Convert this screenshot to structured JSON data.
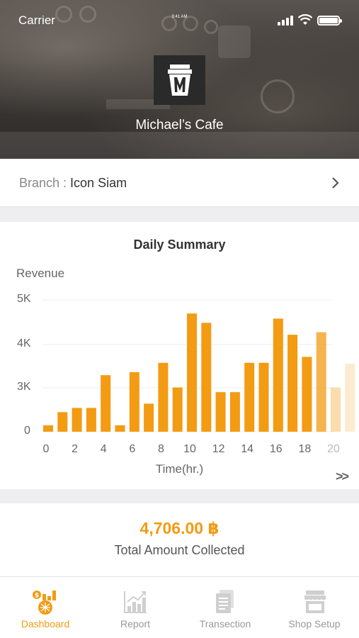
{
  "status_bar": {
    "carrier": "Carrier",
    "time": "9:41 AM"
  },
  "header": {
    "shop_name": "Michael’s Cafe",
    "logo_letter": "M"
  },
  "branch": {
    "label": "Branch : ",
    "value": "Icon Siam",
    "chevron_icon": "chevron-right-icon"
  },
  "chart": {
    "title": "Daily Summary",
    "ylabel": "Revenue",
    "xlabel": "Time(hr.)",
    "more_label": ">>"
  },
  "chart_data": {
    "type": "bar",
    "title": "Daily Summary",
    "xlabel": "Time(hr.)",
    "ylabel": "Revenue",
    "categories": [
      0,
      1,
      2,
      3,
      4,
      5,
      6,
      7,
      8,
      9,
      10,
      11,
      12,
      13,
      14,
      15,
      16,
      17,
      18,
      19,
      20,
      21
    ],
    "values": [
      150,
      460,
      560,
      560,
      1330,
      150,
      1400,
      660,
      1620,
      1040,
      2780,
      2560,
      930,
      930,
      1620,
      1620,
      2660,
      2280,
      1760,
      2340,
      1040,
      1600
    ],
    "y_ticks": [
      "0",
      "3K",
      "4K",
      "5K"
    ],
    "x_ticks": [
      "0",
      "2",
      "4",
      "6",
      "8",
      "10",
      "12",
      "14",
      "16",
      "18",
      "20"
    ],
    "grid": true,
    "colors": {
      "bar": "#f29b13",
      "grid": "#eeeeee"
    }
  },
  "total": {
    "amount": "4,706.00 ฿",
    "label": "Total Amount Collected"
  },
  "tabs": [
    {
      "label": "Dashboard",
      "icon": "dashboard-icon",
      "active": true
    },
    {
      "label": "Report",
      "icon": "report-chart-icon",
      "active": false
    },
    {
      "label": "Transection",
      "icon": "document-icon",
      "active": false
    },
    {
      "label": "Shop Setup",
      "icon": "shop-icon",
      "active": false
    }
  ],
  "colors": {
    "accent": "#f29b13",
    "inactive": "#999999"
  }
}
